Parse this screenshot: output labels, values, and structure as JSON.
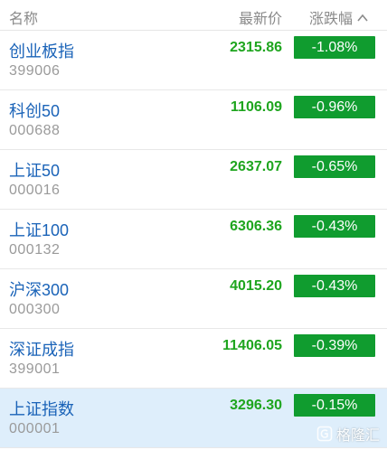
{
  "header": {
    "name_label": "名称",
    "price_label": "最新价",
    "change_label": "涨跌幅",
    "sort_icon": "chevron-up-icon"
  },
  "rows": [
    {
      "name": "创业板指",
      "code": "399006",
      "price": "2315.86",
      "change": "-1.08%"
    },
    {
      "name": "科创50",
      "code": "000688",
      "price": "1106.09",
      "change": "-0.96%"
    },
    {
      "name": "上证50",
      "code": "000016",
      "price": "2637.07",
      "change": "-0.65%"
    },
    {
      "name": "上证100",
      "code": "000132",
      "price": "6306.36",
      "change": "-0.43%"
    },
    {
      "name": "沪深300",
      "code": "000300",
      "price": "4015.20",
      "change": "-0.43%"
    },
    {
      "name": "深证成指",
      "code": "399001",
      "price": "11406.05",
      "change": "-0.39%"
    },
    {
      "name": "上证指数",
      "code": "000001",
      "price": "3296.30",
      "change": "-0.15%"
    }
  ],
  "selected_row": 6,
  "watermark": {
    "text": "格隆汇",
    "icon": "gelonghui-logo-icon"
  },
  "colors": {
    "name_blue": "#1a63b8",
    "price_green": "#1ea51e",
    "badge_green": "#109c2f",
    "selected_bg": "#deeefb",
    "header_gray": "#8a8a8a"
  }
}
